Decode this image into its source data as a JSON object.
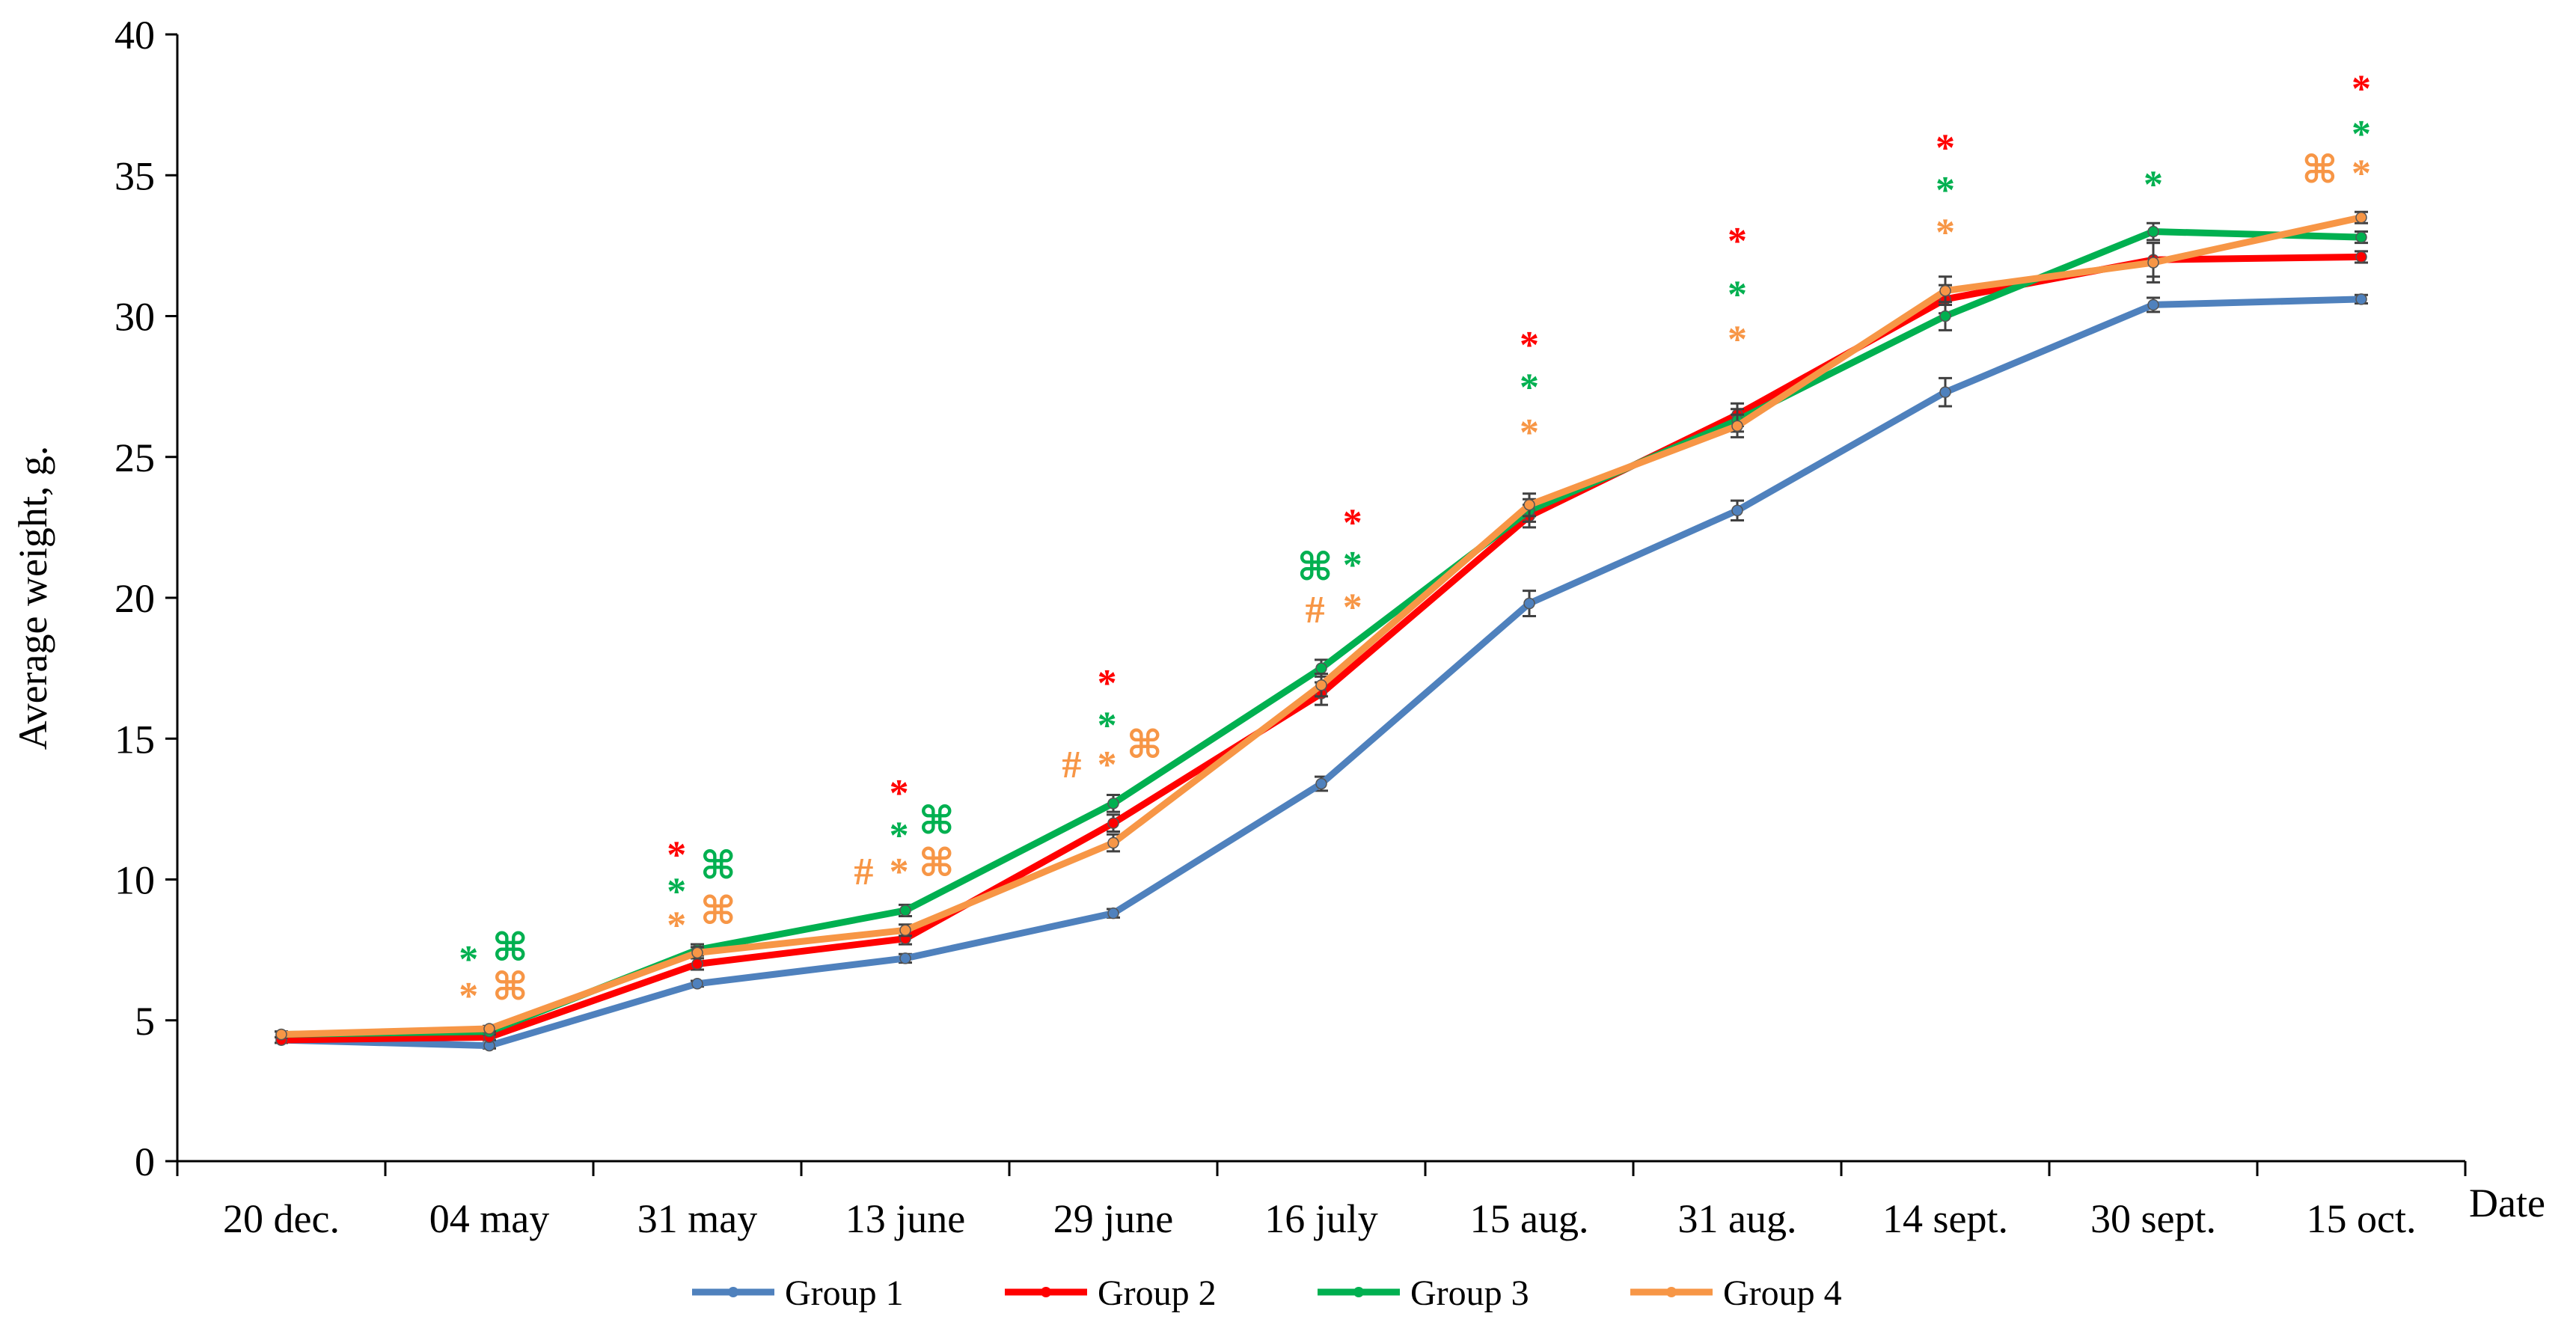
{
  "chart_data": {
    "type": "line",
    "title": "",
    "xlabel": "Date",
    "ylabel": "Average weight, g.",
    "ylim": [
      0,
      40
    ],
    "yticks": [
      0,
      5,
      10,
      15,
      20,
      25,
      30,
      35,
      40
    ],
    "grid": false,
    "legend_position": "bottom",
    "categories": [
      "20 dec.",
      "04 may",
      "31 may",
      "13 june",
      "29 june",
      "16 july",
      "15 aug.",
      "31 aug.",
      "14 sept.",
      "30 sept.",
      "15 oct."
    ],
    "series": [
      {
        "name": "Group 1",
        "color": "#4f81bd",
        "values": [
          4.3,
          4.1,
          6.3,
          7.2,
          8.8,
          13.4,
          19.8,
          23.1,
          27.3,
          30.4,
          30.6
        ],
        "errors": [
          0.1,
          0.1,
          0.1,
          0.15,
          0.15,
          0.25,
          0.45,
          0.35,
          0.5,
          0.25,
          0.15
        ]
      },
      {
        "name": "Group 2",
        "color": "#ff0000",
        "values": [
          4.3,
          4.4,
          7.0,
          7.9,
          12.0,
          16.6,
          22.9,
          26.5,
          30.6,
          32.0,
          32.1
        ],
        "errors": [
          0.1,
          0.1,
          0.2,
          0.2,
          0.3,
          0.4,
          0.4,
          0.4,
          0.5,
          0.6,
          0.2
        ]
      },
      {
        "name": "Group 3",
        "color": "#00b050",
        "values": [
          4.5,
          4.6,
          7.5,
          8.9,
          12.7,
          17.5,
          23.1,
          26.3,
          30.0,
          33.0,
          32.8
        ],
        "errors": [
          0.1,
          0.1,
          0.2,
          0.2,
          0.3,
          0.3,
          0.4,
          0.4,
          0.5,
          0.3,
          0.2
        ]
      },
      {
        "name": "Group 4",
        "color": "#f79646",
        "values": [
          4.5,
          4.7,
          7.4,
          8.2,
          11.3,
          16.9,
          23.3,
          26.1,
          30.9,
          31.9,
          33.5
        ],
        "errors": [
          0.1,
          0.1,
          0.2,
          0.2,
          0.3,
          0.4,
          0.4,
          0.4,
          0.5,
          0.7,
          0.2
        ]
      }
    ],
    "annotations": [
      {
        "category": 1,
        "y": 7.2,
        "offset": -0.1,
        "text": "*",
        "color": "#00b050"
      },
      {
        "category": 1,
        "y": 5.9,
        "offset": -0.1,
        "text": "*",
        "color": "#f79646"
      },
      {
        "category": 1,
        "y": 7.6,
        "offset": 0.1,
        "text": "⌘",
        "color": "#00b050"
      },
      {
        "category": 1,
        "y": 6.2,
        "offset": 0.1,
        "text": "⌘",
        "color": "#f79646"
      },
      {
        "category": 2,
        "y": 10.9,
        "offset": -0.1,
        "text": "*",
        "color": "#ff0000"
      },
      {
        "category": 2,
        "y": 9.6,
        "offset": -0.1,
        "text": "*",
        "color": "#00b050"
      },
      {
        "category": 2,
        "y": 8.4,
        "offset": -0.1,
        "text": "*",
        "color": "#f79646"
      },
      {
        "category": 2,
        "y": 10.5,
        "offset": 0.1,
        "text": "⌘",
        "color": "#00b050"
      },
      {
        "category": 2,
        "y": 8.9,
        "offset": 0.1,
        "text": "⌘",
        "color": "#f79646"
      },
      {
        "category": 3,
        "y": 13.1,
        "offset": -0.03,
        "text": "*",
        "color": "#ff0000"
      },
      {
        "category": 3,
        "y": 11.6,
        "offset": -0.03,
        "text": "*",
        "color": "#00b050"
      },
      {
        "category": 3,
        "y": 10.3,
        "offset": -0.03,
        "text": "*",
        "color": "#f79646"
      },
      {
        "category": 3,
        "y": 10.3,
        "offset": -0.2,
        "text": "#",
        "color": "#f79646"
      },
      {
        "category": 3,
        "y": 12.1,
        "offset": 0.15,
        "text": "⌘",
        "color": "#00b050"
      },
      {
        "category": 3,
        "y": 10.6,
        "offset": 0.15,
        "text": "⌘",
        "color": "#f79646"
      },
      {
        "category": 4,
        "y": 17.0,
        "offset": -0.03,
        "text": "*",
        "color": "#ff0000"
      },
      {
        "category": 4,
        "y": 15.5,
        "offset": -0.03,
        "text": "*",
        "color": "#00b050"
      },
      {
        "category": 4,
        "y": 14.1,
        "offset": -0.03,
        "text": "*",
        "color": "#f79646"
      },
      {
        "category": 4,
        "y": 14.1,
        "offset": -0.2,
        "text": "#",
        "color": "#f79646"
      },
      {
        "category": 4,
        "y": 14.8,
        "offset": 0.15,
        "text": "⌘",
        "color": "#f79646"
      },
      {
        "category": 5,
        "y": 22.7,
        "offset": 0.15,
        "text": "*",
        "color": "#ff0000"
      },
      {
        "category": 5,
        "y": 21.2,
        "offset": 0.15,
        "text": "*",
        "color": "#00b050"
      },
      {
        "category": 5,
        "y": 19.7,
        "offset": 0.15,
        "text": "*",
        "color": "#f79646"
      },
      {
        "category": 5,
        "y": 21.1,
        "offset": -0.03,
        "text": "⌘",
        "color": "#00b050"
      },
      {
        "category": 5,
        "y": 19.6,
        "offset": -0.03,
        "text": "#",
        "color": "#f79646"
      },
      {
        "category": 6,
        "y": 29.0,
        "offset": 0.0,
        "text": "*",
        "color": "#ff0000"
      },
      {
        "category": 6,
        "y": 27.5,
        "offset": 0.0,
        "text": "*",
        "color": "#00b050"
      },
      {
        "category": 6,
        "y": 25.9,
        "offset": 0.0,
        "text": "*",
        "color": "#f79646"
      },
      {
        "category": 7,
        "y": 32.7,
        "offset": 0.0,
        "text": "*",
        "color": "#ff0000"
      },
      {
        "category": 7,
        "y": 30.8,
        "offset": 0.0,
        "text": "*",
        "color": "#00b050"
      },
      {
        "category": 7,
        "y": 29.2,
        "offset": 0.0,
        "text": "*",
        "color": "#f79646"
      },
      {
        "category": 8,
        "y": 36.0,
        "offset": 0.0,
        "text": "*",
        "color": "#ff0000"
      },
      {
        "category": 8,
        "y": 34.5,
        "offset": 0.0,
        "text": "*",
        "color": "#00b050"
      },
      {
        "category": 8,
        "y": 33.0,
        "offset": 0.0,
        "text": "*",
        "color": "#f79646"
      },
      {
        "category": 9,
        "y": 34.7,
        "offset": 0.0,
        "text": "*",
        "color": "#00b050"
      },
      {
        "category": 10,
        "y": 38.1,
        "offset": 0.0,
        "text": "*",
        "color": "#ff0000"
      },
      {
        "category": 10,
        "y": 36.5,
        "offset": 0.0,
        "text": "*",
        "color": "#00b050"
      },
      {
        "category": 10,
        "y": 35.1,
        "offset": 0.0,
        "text": "*",
        "color": "#f79646"
      },
      {
        "category": 10,
        "y": 35.2,
        "offset": -0.2,
        "text": "⌘",
        "color": "#f79646"
      }
    ]
  }
}
